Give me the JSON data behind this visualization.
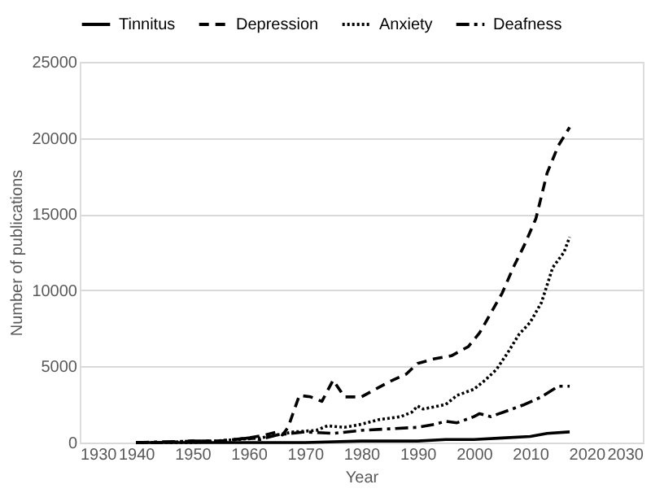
{
  "chart_data": {
    "type": "line",
    "xlabel": "Year",
    "ylabel": "Number of publications",
    "xlim": [
      1930,
      2030
    ],
    "xticks": [
      1930,
      1940,
      1950,
      1960,
      1970,
      1980,
      1990,
      2000,
      2010,
      2020,
      2030
    ],
    "ylim": [
      0,
      25000
    ],
    "yticks": [
      0,
      5000,
      10000,
      15000,
      20000,
      25000
    ],
    "grid": "y",
    "legend": "top",
    "marker": "none",
    "series": [
      {
        "name": "Tinnitus",
        "color": "#000000",
        "line_style": "solid",
        "x": [
          1940,
          1960,
          1970,
          1980,
          1985,
          1990,
          1995,
          2000,
          2005,
          2010,
          2013,
          2017
        ],
        "values": [
          0,
          0,
          0,
          100,
          100,
          100,
          200,
          200,
          300,
          400,
          600,
          700
        ]
      },
      {
        "name": "Depression",
        "color": "#000000",
        "line_style": "dashed",
        "x": [
          1940,
          1945,
          1950,
          1955,
          1960,
          1963,
          1965,
          1966,
          1967,
          1969,
          1971,
          1973,
          1975,
          1977,
          1980,
          1983,
          1985,
          1988,
          1990,
          1993,
          1996,
          1999,
          2001,
          2003,
          2005,
          2007,
          2009,
          2011,
          2013,
          2015,
          2017
        ],
        "values": [
          0,
          0,
          100,
          100,
          300,
          500,
          700,
          500,
          1000,
          3100,
          3000,
          2700,
          4100,
          3000,
          3000,
          3600,
          4000,
          4500,
          5200,
          5500,
          5700,
          6300,
          7200,
          8500,
          9800,
          11500,
          13000,
          14700,
          17700,
          19500,
          20700
        ]
      },
      {
        "name": "Anxiety",
        "color": "#000000",
        "line_style": "dotted",
        "x": [
          1940,
          1950,
          1958,
          1962,
          1965,
          1968,
          1972,
          1974,
          1977,
          1980,
          1983,
          1987,
          1989,
          1990,
          1991,
          1995,
          1997,
          2000,
          2002,
          2004,
          2006,
          2008,
          2010,
          2012,
          2014,
          2016,
          2017
        ],
        "values": [
          0,
          0,
          200,
          300,
          500,
          700,
          800,
          1100,
          1000,
          1200,
          1500,
          1700,
          2000,
          2400,
          2200,
          2500,
          3100,
          3500,
          4100,
          4800,
          5900,
          7100,
          7900,
          9200,
          11500,
          12500,
          13500
        ]
      },
      {
        "name": "Deafness",
        "color": "#000000",
        "line_style": "dashdot",
        "x": [
          1940,
          1950,
          1955,
          1960,
          1962,
          1965,
          1970,
          1975,
          1980,
          1985,
          1990,
          1993,
          1995,
          1997,
          2000,
          2001,
          2003,
          2006,
          2009,
          2012,
          2015,
          2017
        ],
        "values": [
          0,
          100,
          100,
          300,
          200,
          500,
          700,
          600,
          800,
          900,
          1000,
          1200,
          1400,
          1300,
          1700,
          1900,
          1700,
          2100,
          2500,
          3000,
          3700,
          3700
        ]
      }
    ]
  }
}
